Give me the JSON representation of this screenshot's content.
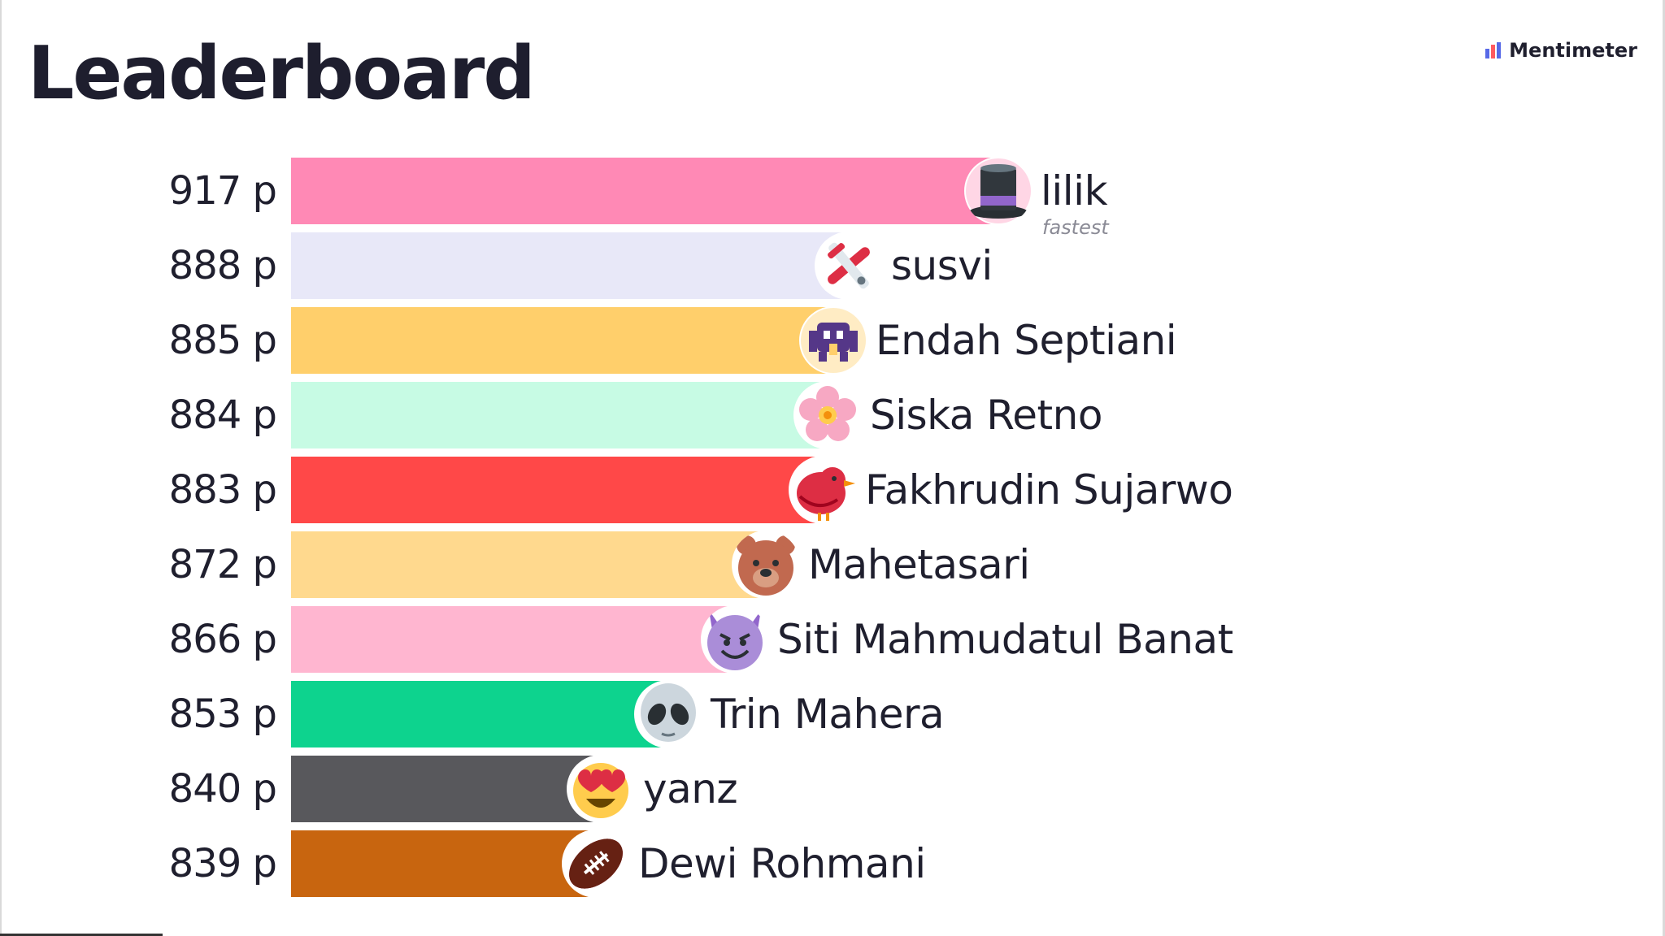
{
  "header": {
    "title": "Leaderboard",
    "brand": "Mentimeter"
  },
  "max_score": 917,
  "fastest_label": "fastest",
  "entries": [
    {
      "score": "917 p",
      "value": 917,
      "name": "lilik",
      "color": "#ff89b5",
      "icon": "top-hat-icon",
      "fastest": true
    },
    {
      "score": "888 p",
      "value": 888,
      "name": "susvi",
      "color": "#e8e8f8",
      "icon": "airplane-icon"
    },
    {
      "score": "885 p",
      "value": 885,
      "name": "Endah Septiani",
      "color": "#ffcf6b",
      "icon": "space-invader-icon"
    },
    {
      "score": "884 p",
      "value": 884,
      "name": "Siska Retno",
      "color": "#c7fbe4",
      "icon": "cherry-blossom-icon"
    },
    {
      "score": "883 p",
      "value": 883,
      "name": "Fakhrudin Sujarwo",
      "color": "#ff4848",
      "icon": "red-bird-icon"
    },
    {
      "score": "872 p",
      "value": 872,
      "name": "Mahetasari",
      "color": "#ffd98e",
      "icon": "bear-face-icon"
    },
    {
      "score": "866 p",
      "value": 866,
      "name": "Siti Mahmudatul Banat",
      "color": "#ffb6d0",
      "icon": "smiling-devil-icon"
    },
    {
      "score": "853 p",
      "value": 853,
      "name": "Trin Mahera",
      "color": "#0dd38e",
      "icon": "alien-icon"
    },
    {
      "score": "840 p",
      "value": 840,
      "name": "yanz",
      "color": "#58585c",
      "icon": "heart-eyes-icon"
    },
    {
      "score": "839 p",
      "value": 839,
      "name": "Dewi Rohmani",
      "color": "#c8650f",
      "icon": "football-icon"
    }
  ]
}
